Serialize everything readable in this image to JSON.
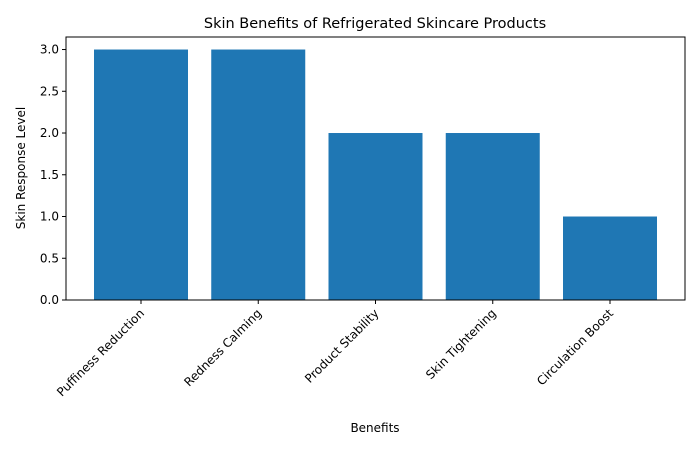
{
  "chart_data": {
    "type": "bar",
    "title": "Skin Benefits of Refrigerated Skincare Products",
    "xlabel": "Benefits",
    "ylabel": "Skin Response Level",
    "categories": [
      "Puffiness Reduction",
      "Redness Calming",
      "Product Stability",
      "Skin Tightening",
      "Circulation Boost"
    ],
    "values": [
      3,
      3,
      2,
      2,
      1
    ],
    "ylim": [
      0,
      3.15
    ],
    "yticks": [
      "0.0",
      "0.5",
      "1.0",
      "1.5",
      "2.0",
      "2.5",
      "3.0"
    ],
    "bar_color": "#1f77b4",
    "grid": false,
    "xtick_rotation": 45
  }
}
